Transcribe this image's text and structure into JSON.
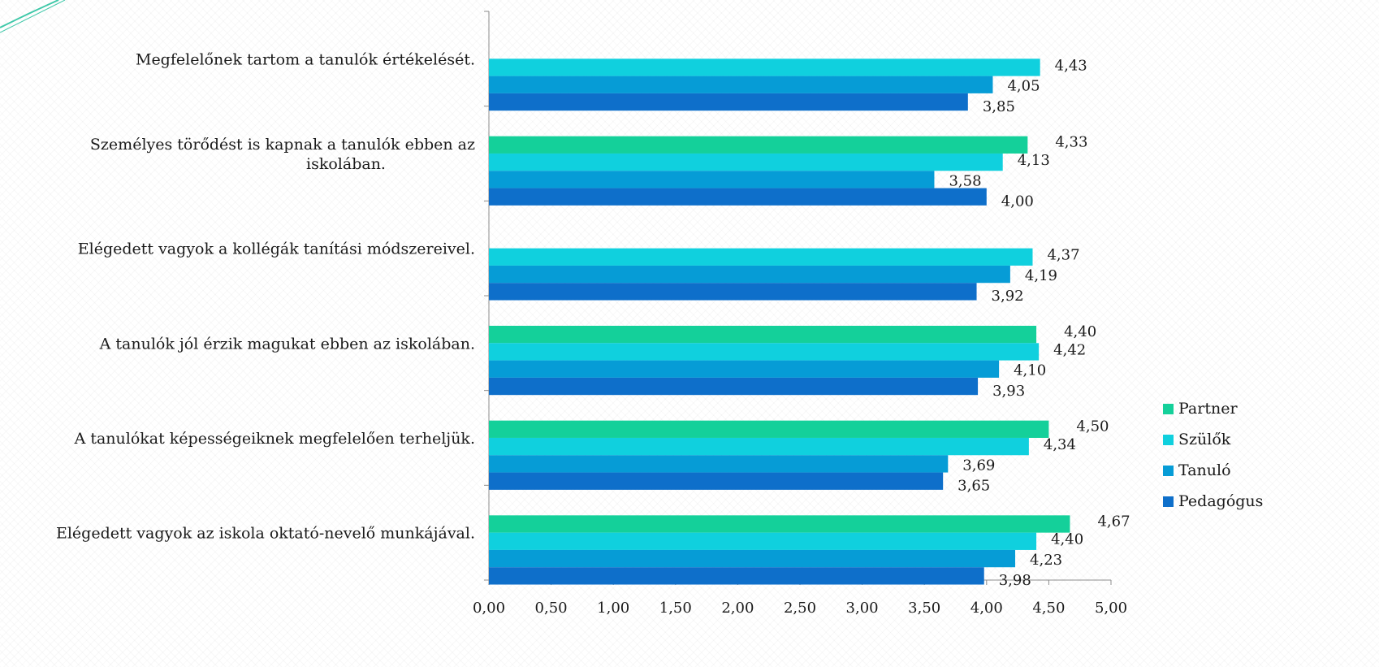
{
  "chart_data": {
    "type": "bar",
    "orientation": "horizontal",
    "categories": [
      [
        "Megfelelőnek tartom a tanulók értékelését."
      ],
      [
        "Személyes törődést is kapnak a tanulók ebben az",
        "iskolában."
      ],
      [
        "Elégedett vagyok a kollégák tanítási módszereivel."
      ],
      [
        "A tanulók jól érzik magukat ebben az iskolában."
      ],
      [
        "A tanulókat képességeiknek megfelelően terheljük."
      ],
      [
        "Elégedett vagyok az iskola oktató-nevelő munkájával."
      ]
    ],
    "series": [
      {
        "name": "Partner",
        "color": "#14d09a",
        "values": [
          null,
          4.33,
          null,
          4.4,
          4.5,
          4.67
        ],
        "labels": [
          "",
          "4,33",
          "",
          "4,40",
          "4,50",
          "4,67"
        ]
      },
      {
        "name": "Szülők",
        "color": "#10d0de",
        "values": [
          4.43,
          4.13,
          4.37,
          4.42,
          4.34,
          4.4
        ],
        "labels": [
          "4,43",
          "4,13",
          "4,37",
          "4,42",
          "4,34",
          "4,40"
        ]
      },
      {
        "name": "Tanuló",
        "color": "#069cd6",
        "values": [
          4.05,
          3.58,
          4.19,
          4.1,
          3.69,
          4.23
        ],
        "labels": [
          "4,05",
          "3,58",
          "4,19",
          "4,10",
          "3,69",
          "4,23"
        ]
      },
      {
        "name": "Pedagógus",
        "color": "#0e6fca",
        "values": [
          3.85,
          4.0,
          3.92,
          3.93,
          3.65,
          3.98
        ],
        "labels": [
          "3,85",
          "4,00",
          "3,92",
          "3,93",
          "3,65",
          "3,98"
        ]
      }
    ],
    "xlim": [
      0,
      5
    ],
    "xticks": [
      0,
      0.5,
      1,
      1.5,
      2,
      2.5,
      3,
      3.5,
      4,
      4.5,
      5
    ],
    "xtick_labels": [
      "0,00",
      "0,50",
      "1,00",
      "1,50",
      "2,00",
      "2,50",
      "3,00",
      "3,50",
      "4,00",
      "4,50",
      "5,00"
    ],
    "legend_position": "right",
    "legend_order": [
      "Partner",
      "Szülők",
      "Tanuló",
      "Pedagógus"
    ],
    "grid": false
  }
}
